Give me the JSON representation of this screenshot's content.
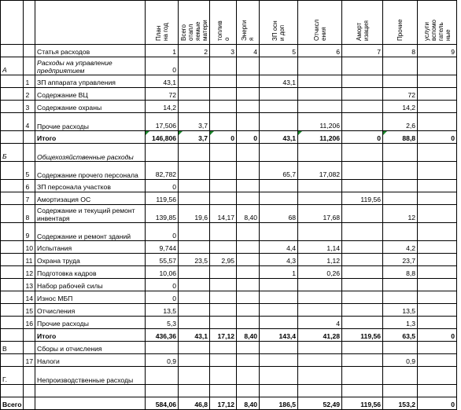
{
  "columns": [
    {
      "key": "section"
    },
    {
      "key": "num"
    },
    {
      "key": "name"
    },
    {
      "key": "c1",
      "header": "План\nна год"
    },
    {
      "key": "c2",
      "header": "Всего\nотапл\nяемые\nматери"
    },
    {
      "key": "c3",
      "header": "топлив\nо"
    },
    {
      "key": "c4",
      "header": "Энерги\nя"
    },
    {
      "key": "c5",
      "header": "ЗП осн\nи доп"
    },
    {
      "key": "c6",
      "header": "Отчисл\nения"
    },
    {
      "key": "c7",
      "header": "Аморт\nизация"
    },
    {
      "key": "c8",
      "header": "Прочие"
    },
    {
      "key": "c9",
      "header": "услуги\nвспомо\nгатель\nные"
    }
  ],
  "rows": [
    {
      "section": "",
      "num": "",
      "name": "Статья расходов",
      "c1": "1",
      "c2": "2",
      "c3": "3",
      "c4": "4",
      "c5": "5",
      "c6": "6",
      "c7": "7",
      "c8": "8",
      "c9": "9"
    },
    {
      "section": "А",
      "num": "",
      "name": "Расходы на управление предприятием",
      "style": "ital",
      "tall": true,
      "c1": "0"
    },
    {
      "section": "",
      "num": "1",
      "name": "ЗП аппарата управления",
      "c1": "43,1",
      "c5": "43,1"
    },
    {
      "section": "",
      "num": "2",
      "name": "Содержание ВЦ",
      "c1": "72",
      "c8": "72"
    },
    {
      "section": "",
      "num": "3",
      "name": "Содержание охраны",
      "c1": "14,2",
      "c8": "14,2"
    },
    {
      "section": "",
      "num": "4",
      "name": "Прочие расходы",
      "tall": true,
      "c1": "17,506",
      "c2": "3,7",
      "c6": "11,206",
      "c8": "2,6"
    },
    {
      "section": "",
      "num": "",
      "name": "Итого",
      "style": "bold",
      "c1": "146,806",
      "c2": "3,7",
      "c3": "0",
      "c4": "0",
      "c5": "43,1",
      "c6": "11,206",
      "c7": "0",
      "c8": "88,8",
      "c9": "0",
      "flags": [
        "c1",
        "c2",
        "c3",
        "c6",
        "c8"
      ]
    },
    {
      "section": "Б",
      "num": "",
      "name": "Общехозяйственные расходы",
      "style": "ital",
      "tall": true
    },
    {
      "section": "",
      "num": "5",
      "name": "Содержание прочего персонала",
      "tall": true,
      "c1": "82,782",
      "c5": "65,7",
      "c6": "17,082"
    },
    {
      "section": "",
      "num": "6",
      "name": "ЗП персонала участков",
      "c1": "0"
    },
    {
      "section": "",
      "num": "7",
      "name": "Амортизация ОС",
      "c1": "119,56",
      "c7": "119,56"
    },
    {
      "section": "",
      "num": "8",
      "name": "Содержание и текущий ремонт инвентаря",
      "tall": true,
      "c1": "139,85",
      "c2": "19,6",
      "c3": "14,17",
      "c4": "8,40",
      "c5": "68",
      "c6": "17,68",
      "c8": "12"
    },
    {
      "section": "",
      "num": "9",
      "name": "Содержание и ремонт зданий",
      "tall": true,
      "c1": "0"
    },
    {
      "section": "",
      "num": "10",
      "name": "Испытания",
      "c1": "9,744",
      "c5": "4,4",
      "c6": "1,14",
      "c8": "4,2"
    },
    {
      "section": "",
      "num": "11",
      "name": "Охрана труда",
      "c1": "55,57",
      "c2": "23,5",
      "c3": "2,95",
      "c5": "4,3",
      "c6": "1,12",
      "c8": "23,7"
    },
    {
      "section": "",
      "num": "12",
      "name": "Подготовка кадров",
      "c1": "10,06",
      "c5": "1",
      "c6": "0,26",
      "c8": "8,8"
    },
    {
      "section": "",
      "num": "13",
      "name": "Набор рабочей силы",
      "c1": "0"
    },
    {
      "section": "",
      "num": "14",
      "name": "Износ МБП",
      "c1": "0"
    },
    {
      "section": "",
      "num": "15",
      "name": "Отчисления",
      "c1": "13,5",
      "c8": "13,5"
    },
    {
      "section": "",
      "num": "16",
      "name": "Прочие расходы",
      "c1": "5,3",
      "c6": "4",
      "c8": "1,3"
    },
    {
      "section": "",
      "num": "",
      "name": "Итого",
      "style": "bold",
      "c1": "436,36",
      "c2": "43,1",
      "c3": "17,12",
      "c4": "8,40",
      "c5": "143,4",
      "c6": "41,28",
      "c7": "119,56",
      "c8": "63,5",
      "c9": "0"
    },
    {
      "section": "В",
      "num": "",
      "name": "Сборы и отчисления"
    },
    {
      "section": "",
      "num": "17",
      "name": "Налоги",
      "c1": "0,9",
      "c8": "0,9"
    },
    {
      "section": "Г.",
      "num": "",
      "name": "Непроизводственные расходы",
      "tall": true
    },
    {
      "section": "",
      "num": "",
      "name": ""
    },
    {
      "section": "Всего",
      "num": "",
      "name": "",
      "style": "bold",
      "c1": "584,06",
      "c2": "46,8",
      "c3": "17,12",
      "c4": "8,40",
      "c5": "186,5",
      "c6": "52,49",
      "c7": "119,56",
      "c8": "153,2",
      "c9": "0"
    }
  ]
}
